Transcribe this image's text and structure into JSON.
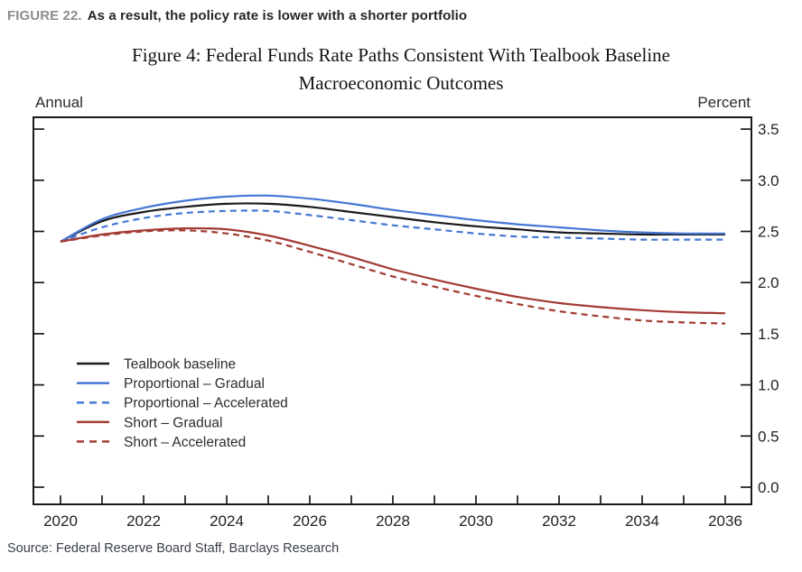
{
  "header": {
    "figure_label": "FIGURE 22.",
    "heading": "As a result, the policy rate is lower with a shorter portfolio"
  },
  "source": {
    "text": "Source: Federal Reserve Board Staff, Barclays Research"
  },
  "colors": {
    "blue": "#4577d4",
    "red": "#a23b33",
    "black": "#1a1a1a",
    "axis": "#1a1a1a",
    "header_gray": "#8c8c8c",
    "header_dark": "#262626"
  },
  "chart_data": {
    "type": "line",
    "title": "Figure 4: Federal Funds Rate Paths Consistent With Tealbook Baseline Macroeconomic Outcomes",
    "title_lines": [
      "Figure 4: Federal Funds Rate Paths Consistent With Tealbook Baseline",
      "Macroeconomic Outcomes"
    ],
    "left_axis_label": "Annual",
    "right_axis_label": "Percent",
    "xlabel": "",
    "ylabel": "Percent",
    "xlim": [
      2019.35,
      2036.65
    ],
    "ylim": [
      -0.17,
      3.62
    ],
    "grid": false,
    "legend_position": "lower-left",
    "x": [
      2020,
      2021,
      2022,
      2023,
      2024,
      2025,
      2026,
      2027,
      2028,
      2029,
      2030,
      2031,
      2032,
      2033,
      2034,
      2035,
      2036
    ],
    "x_tick_labels": [
      "2020",
      "2022",
      "2024",
      "2026",
      "2028",
      "2030",
      "2032",
      "2034",
      "2036"
    ],
    "y_tick_labels": [
      "0.0",
      "0.5",
      "1.0",
      "1.5",
      "2.0",
      "2.5",
      "3.0",
      "3.5"
    ],
    "series": [
      {
        "name": "Tealbook baseline",
        "color": "#1a1a1a",
        "style": "solid",
        "values": [
          2.4,
          2.6,
          2.69,
          2.74,
          2.77,
          2.77,
          2.74,
          2.69,
          2.64,
          2.59,
          2.55,
          2.52,
          2.49,
          2.48,
          2.47,
          2.47,
          2.47
        ]
      },
      {
        "name": "Proportional – Gradual",
        "color": "#4577d4",
        "style": "solid",
        "values": [
          2.4,
          2.62,
          2.73,
          2.8,
          2.84,
          2.85,
          2.82,
          2.77,
          2.71,
          2.66,
          2.61,
          2.57,
          2.54,
          2.51,
          2.49,
          2.48,
          2.48
        ]
      },
      {
        "name": "Proportional – Accelerated",
        "color": "#4577d4",
        "style": "dashed",
        "values": [
          2.4,
          2.54,
          2.63,
          2.68,
          2.7,
          2.7,
          2.66,
          2.61,
          2.56,
          2.52,
          2.48,
          2.45,
          2.44,
          2.43,
          2.42,
          2.42,
          2.42
        ]
      },
      {
        "name": "Short – Gradual",
        "color": "#a23b33",
        "style": "solid",
        "values": [
          2.4,
          2.47,
          2.51,
          2.53,
          2.52,
          2.46,
          2.36,
          2.25,
          2.13,
          2.03,
          1.94,
          1.86,
          1.8,
          1.76,
          1.73,
          1.71,
          1.7
        ]
      },
      {
        "name": "Short – Accelerated",
        "color": "#a23b33",
        "style": "dashed",
        "values": [
          2.4,
          2.46,
          2.5,
          2.51,
          2.48,
          2.41,
          2.3,
          2.18,
          2.06,
          1.96,
          1.87,
          1.79,
          1.72,
          1.67,
          1.63,
          1.61,
          1.6
        ]
      }
    ]
  }
}
